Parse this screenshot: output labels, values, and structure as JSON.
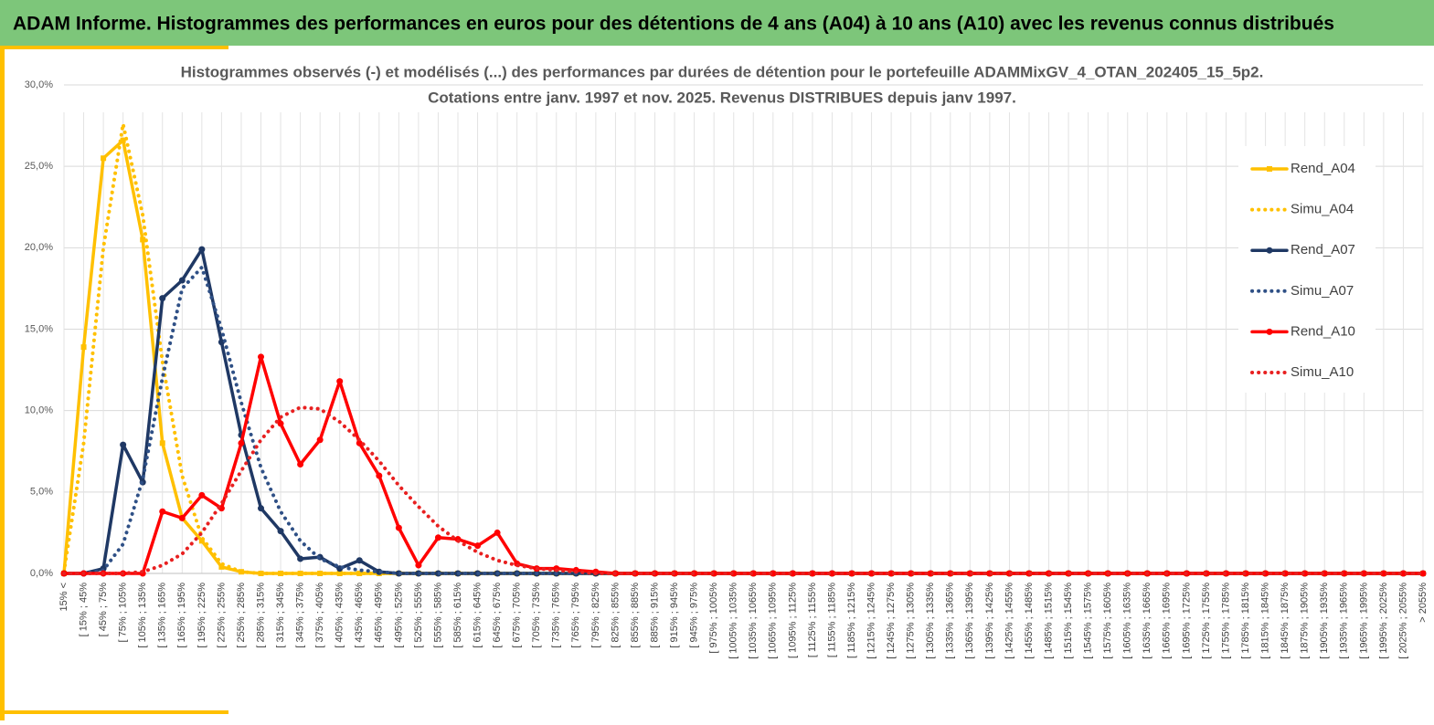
{
  "header": {
    "title": "ADAM Informe. Histogrammes des performances en euros pour des détentions de 4 ans (A04) à 10 ans (A10) avec les revenus connus distribués"
  },
  "chart_data": {
    "type": "line",
    "title": "Histogrammes observés (-) et modélisés (...) des performances par durées de détention pour le portefeuille ADAMMixGV_4_OTAN_202405_15_5p2.",
    "subtitle": "Cotations entre janv. 1997 et nov. 2025. Revenus DISTRIBUES depuis janv 1997.",
    "categories": [
      "15% <",
      "[ 15% ; 45%",
      "[ 45% ; 75%",
      "[ 75% ; 105%",
      "[ 105% ; 135%",
      "[ 135% ; 165%",
      "[ 165% ; 195%",
      "[ 195% ; 225%",
      "[ 225% ; 255%",
      "[ 255% ; 285%",
      "[ 285% ; 315%",
      "[ 315% ; 345%",
      "[ 345% ; 375%",
      "[ 375% ; 405%",
      "[ 405% ; 435%",
      "[ 435% ; 465%",
      "[ 465% ; 495%",
      "[ 495% ; 525%",
      "[ 525% ; 555%",
      "[ 555% ; 585%",
      "[ 585% ; 615%",
      "[ 615% ; 645%",
      "[ 645% ; 675%",
      "[ 675% ; 705%",
      "[ 705% ; 735%",
      "[ 735% ; 765%",
      "[ 765% ; 795%",
      "[ 795% ; 825%",
      "[ 825% ; 855%",
      "[ 855% ; 885%",
      "[ 885% ; 915%",
      "[ 915% ; 945%",
      "[ 945% ; 975%",
      "[ 975% ; 1005%",
      "[ 1005% ; 1035%",
      "[ 1035% ; 1065%",
      "[ 1065% ; 1095%",
      "[ 1095% ; 1125%",
      "[ 1125% ; 1155%",
      "[ 1155% ; 1185%",
      "[ 1185% ; 1215%",
      "[ 1215% ; 1245%",
      "[ 1245% ; 1275%",
      "[ 1275% ; 1305%",
      "[ 1305% ; 1335%",
      "[ 1335% ; 1365%",
      "[ 1365% ; 1395%",
      "[ 1395% ; 1425%",
      "[ 1425% ; 1455%",
      "[ 1455% ; 1485%",
      "[ 1485% ; 1515%",
      "[ 1515% ; 1545%",
      "[ 1545% ; 1575%",
      "[ 1575% ; 1605%",
      "[ 1605% ; 1635%",
      "[ 1635% ; 1665%",
      "[ 1665% ; 1695%",
      "[ 1695% ; 1725%",
      "[ 1725% ; 1755%",
      "[ 1755% ; 1785%",
      "[ 1785% ; 1815%",
      "[ 1815% ; 1845%",
      "[ 1845% ; 1875%",
      "[ 1875% ; 1905%",
      "[ 1905% ; 1935%",
      "[ 1935% ; 1965%",
      "[ 1965% ; 1995%",
      "[ 1995% ; 2025%",
      "[ 2025% ; 2055%",
      "> 2055%"
    ],
    "series": [
      {
        "name": "Rend_A04",
        "color": "#ffc000",
        "line_style": "solid",
        "marker": "square",
        "values": [
          0,
          13.9,
          25.5,
          26.6,
          20.5,
          8.0,
          3.4,
          2.0,
          0.4,
          0.1,
          0,
          0,
          0,
          0,
          0,
          0,
          0,
          0,
          0,
          0,
          0,
          0,
          0,
          0,
          0,
          0,
          0,
          0,
          0,
          0,
          0,
          0,
          0,
          0,
          0,
          0,
          0,
          0,
          0,
          0,
          0,
          0,
          0,
          0,
          0,
          0,
          0,
          0,
          0,
          0,
          0,
          0,
          0,
          0,
          0,
          0,
          0,
          0,
          0,
          0,
          0,
          0,
          0,
          0,
          0,
          0,
          0,
          0,
          0,
          0
        ]
      },
      {
        "name": "Simu_A04",
        "color": "#ffc000",
        "line_style": "dotted",
        "values": [
          0.1,
          8,
          20,
          27.6,
          22,
          13,
          6,
          2.2,
          0.6,
          0.1,
          0,
          0,
          0,
          0,
          0,
          0,
          0,
          0,
          0,
          0,
          0,
          0,
          0,
          0,
          0,
          0,
          0,
          0,
          0,
          0,
          0,
          0,
          0,
          0,
          0,
          0,
          0,
          0,
          0,
          0,
          0,
          0,
          0,
          0,
          0,
          0,
          0,
          0,
          0,
          0,
          0,
          0,
          0,
          0,
          0,
          0,
          0,
          0,
          0,
          0,
          0,
          0,
          0,
          0,
          0,
          0,
          0,
          0,
          0,
          0
        ]
      },
      {
        "name": "Rend_A07",
        "color": "#1f3864",
        "line_style": "solid",
        "marker": "circle",
        "values": [
          0,
          0,
          0.3,
          7.9,
          5.6,
          16.9,
          18.0,
          19.9,
          14.2,
          8.5,
          4.0,
          2.6,
          0.9,
          1.0,
          0.3,
          0.8,
          0.1,
          0,
          0,
          0,
          0,
          0,
          0,
          0,
          0,
          0,
          0,
          0,
          0,
          0,
          0,
          0,
          0,
          0,
          0,
          0,
          0,
          0,
          0,
          0,
          0,
          0,
          0,
          0,
          0,
          0,
          0,
          0,
          0,
          0,
          0,
          0,
          0,
          0,
          0,
          0,
          0,
          0,
          0,
          0,
          0,
          0,
          0,
          0,
          0,
          0,
          0,
          0,
          0,
          0
        ]
      },
      {
        "name": "Simu_A07",
        "color": "#2f5086",
        "line_style": "dotted",
        "values": [
          0,
          0,
          0.2,
          1.8,
          5.8,
          12,
          17.5,
          18.8,
          15,
          10.5,
          6.5,
          3.8,
          2.0,
          0.9,
          0.4,
          0.2,
          0.1,
          0,
          0,
          0,
          0,
          0,
          0,
          0,
          0,
          0,
          0,
          0,
          0,
          0,
          0,
          0,
          0,
          0,
          0,
          0,
          0,
          0,
          0,
          0,
          0,
          0,
          0,
          0,
          0,
          0,
          0,
          0,
          0,
          0,
          0,
          0,
          0,
          0,
          0,
          0,
          0,
          0,
          0,
          0,
          0,
          0,
          0,
          0,
          0,
          0,
          0,
          0,
          0,
          0
        ]
      },
      {
        "name": "Rend_A10",
        "color": "#ff0000",
        "line_style": "solid",
        "marker": "circle",
        "values": [
          0,
          0,
          0,
          0,
          0,
          3.8,
          3.4,
          4.8,
          4.0,
          8.0,
          13.3,
          9.2,
          6.7,
          8.2,
          11.8,
          8.0,
          6.0,
          2.8,
          0.5,
          2.2,
          2.1,
          1.7,
          2.5,
          0.6,
          0.3,
          0.3,
          0.2,
          0.1,
          0,
          0,
          0,
          0,
          0,
          0,
          0,
          0,
          0,
          0,
          0,
          0,
          0,
          0,
          0,
          0,
          0,
          0,
          0,
          0,
          0,
          0,
          0,
          0,
          0,
          0,
          0,
          0,
          0,
          0,
          0,
          0,
          0,
          0,
          0,
          0,
          0,
          0,
          0,
          0,
          0,
          0
        ]
      },
      {
        "name": "Simu_A10",
        "color": "#e82020",
        "line_style": "dotted",
        "values": [
          0,
          0,
          0,
          0,
          0.1,
          0.5,
          1.2,
          2.5,
          4.3,
          6.3,
          8.2,
          9.6,
          10.2,
          10.1,
          9.3,
          8.2,
          6.9,
          5.4,
          4.1,
          2.9,
          2.0,
          1.3,
          0.8,
          0.5,
          0.3,
          0.2,
          0.1,
          0,
          0,
          0,
          0,
          0,
          0,
          0,
          0,
          0,
          0,
          0,
          0,
          0,
          0,
          0,
          0,
          0,
          0,
          0,
          0,
          0,
          0,
          0,
          0,
          0,
          0,
          0,
          0,
          0,
          0,
          0,
          0,
          0,
          0,
          0,
          0,
          0,
          0,
          0,
          0,
          0,
          0,
          0
        ]
      }
    ],
    "ylim": [
      0,
      30
    ],
    "yticks": [
      {
        "value": 0,
        "label": "0,0%"
      },
      {
        "value": 5,
        "label": "5,0%"
      },
      {
        "value": 10,
        "label": "10,0%"
      },
      {
        "value": 15,
        "label": "15,0%"
      },
      {
        "value": 20,
        "label": "20,0%"
      },
      {
        "value": 25,
        "label": "25,0%"
      },
      {
        "value": 30,
        "label": "30,0%"
      }
    ],
    "grid": true,
    "legend": "right"
  }
}
